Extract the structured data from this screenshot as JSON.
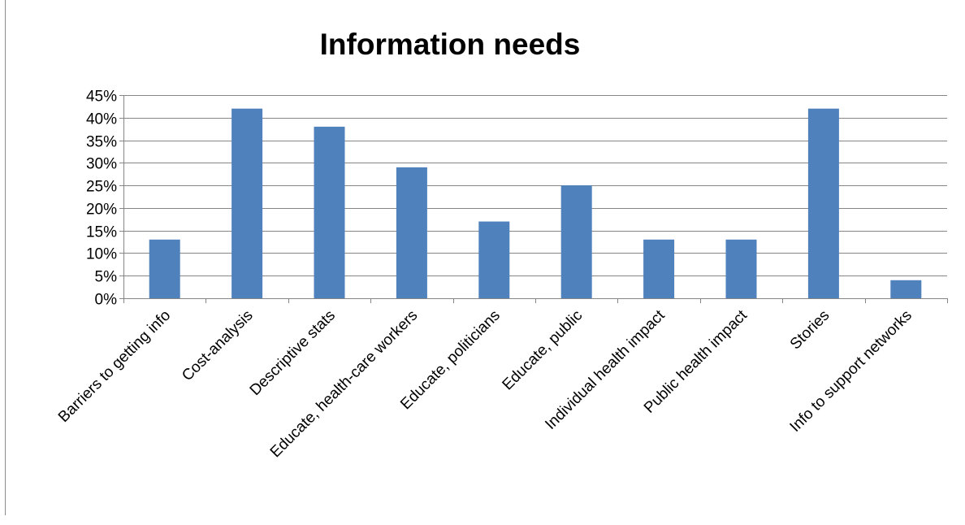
{
  "chart_data": {
    "type": "bar",
    "title": "Information needs",
    "xlabel": "",
    "ylabel": "",
    "categories": [
      "Barriers to getting info",
      "Cost-analysis",
      "Descriptive stats",
      "Educate, health-care workers",
      "Educate, politicians",
      "Educate, public",
      "Individual health impact",
      "Public health impact",
      "Stories",
      "Info to support networks"
    ],
    "values": [
      0.13,
      0.42,
      0.38,
      0.29,
      0.17,
      0.25,
      0.13,
      0.13,
      0.42,
      0.04
    ],
    "ylim": [
      0,
      0.45
    ],
    "yticks": [
      0,
      0.05,
      0.1,
      0.15,
      0.2,
      0.25,
      0.3,
      0.35,
      0.4,
      0.45
    ],
    "ytick_labels": [
      "0%",
      "5%",
      "10%",
      "15%",
      "20%",
      "25%",
      "30%",
      "35%",
      "40%",
      "45%"
    ],
    "grid": true,
    "legend": "none",
    "colors": {
      "bar": "#4f81bd",
      "grid": "#868686",
      "axis": "#868686"
    }
  }
}
